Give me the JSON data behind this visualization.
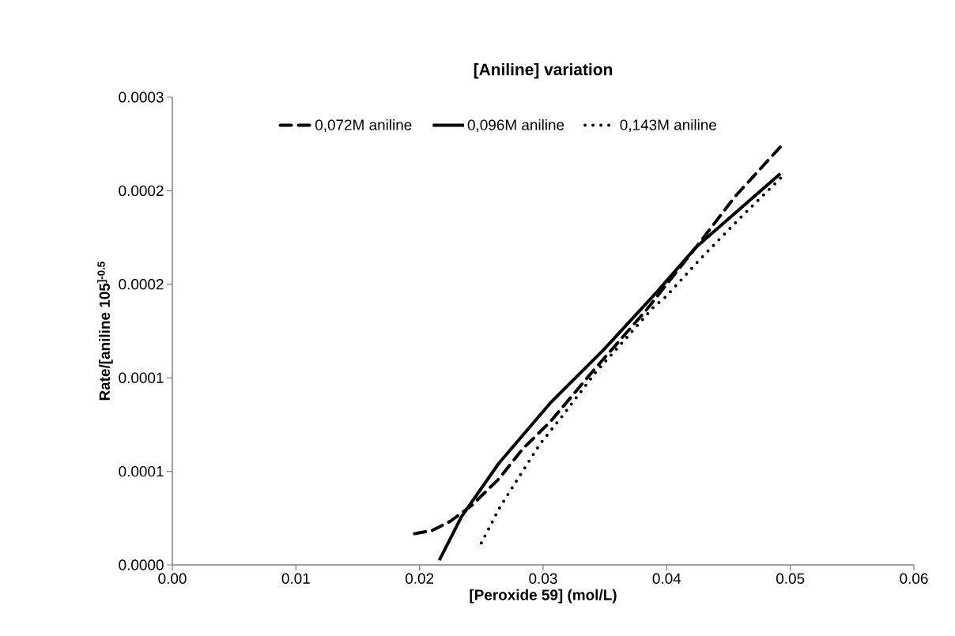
{
  "chart_data": {
    "type": "line",
    "title": "[Aniline] variation",
    "xlabel": "[Peroxide 59] (mol/L)",
    "ylabel": "Rate/[aniline 105$^{]-0.5}$",
    "xlim": [
      0,
      0.06
    ],
    "ylim": [
      0,
      0.0003
    ],
    "xticks": [
      {
        "value": 0,
        "label": "0.00"
      },
      {
        "value": 0.01,
        "label": "0.01"
      },
      {
        "value": 0.02,
        "label": "0.02"
      },
      {
        "value": 0.03,
        "label": "0.03"
      },
      {
        "value": 0.04,
        "label": "0.04"
      },
      {
        "value": 0.05,
        "label": "0.05"
      },
      {
        "value": 0.06,
        "label": "0.06"
      }
    ],
    "yticks": [
      {
        "value": 0,
        "label": "0.0000"
      },
      {
        "value": 6e-05,
        "label": "0.0001"
      },
      {
        "value": 0.00012,
        "label": "0.0001"
      },
      {
        "value": 0.00018,
        "label": "0.0002"
      },
      {
        "value": 0.00024,
        "label": "0.0002"
      },
      {
        "value": 0.0003,
        "label": "0.0003"
      }
    ],
    "legend": "top",
    "series": [
      {
        "name": "0,072M aniline",
        "color": "#000000",
        "line_style": "dashed",
        "x": [
          0.0196,
          0.021,
          0.0225,
          0.0242,
          0.0264,
          0.0283,
          0.0306,
          0.034,
          0.0383,
          0.0424,
          0.0455,
          0.0493
        ],
        "values": [
          2e-05,
          2.2e-05,
          2.8e-05,
          3.8e-05,
          5.5e-05,
          7.4e-05,
          9.2e-05,
          0.000124,
          0.000163,
          0.000204,
          0.000236,
          0.000269
        ]
      },
      {
        "name": "0,096M aniline",
        "color": "#000000",
        "line_style": "solid",
        "x": [
          0.0216,
          0.0234,
          0.0264,
          0.0306,
          0.0349,
          0.0392,
          0.0424,
          0.0492
        ],
        "values": [
          3e-06,
          3.1e-05,
          6.5e-05,
          0.000104,
          0.000138,
          0.000175,
          0.000204,
          0.000251
        ]
      },
      {
        "name": "0,143M aniline",
        "color": "#000000",
        "line_style": "dotted",
        "x": [
          0.025,
          0.0265,
          0.0281,
          0.0297,
          0.0317,
          0.0342,
          0.037,
          0.039,
          0.0398,
          0.0427,
          0.0455,
          0.0492
        ],
        "values": [
          1.4e-05,
          3.7e-05,
          5.7e-05,
          7.7e-05,
          9.7e-05,
          0.000123,
          0.000148,
          0.000166,
          0.000171,
          0.000196,
          0.000219,
          0.000248
        ]
      }
    ]
  }
}
